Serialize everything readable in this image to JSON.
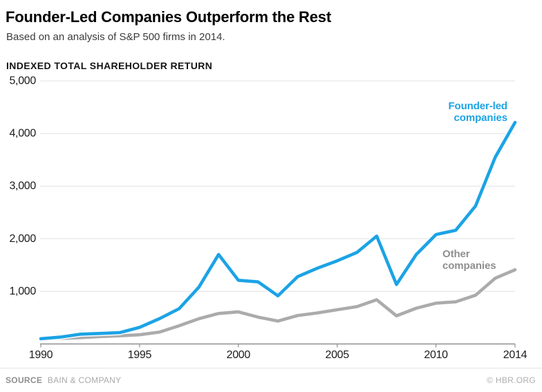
{
  "header": {
    "title": "Founder-Led Companies Outperform the Rest",
    "subtitle": "Based on an analysis of S&P 500 firms in 2014."
  },
  "chart_data": {
    "type": "line",
    "title": "Founder-Led Companies Outperform the Rest",
    "subtitle": "Based on an analysis of S&P 500 firms in 2014.",
    "ylabel": "INDEXED TOTAL SHAREHOLDER RETURN",
    "xlabel": "",
    "ylim": [
      0,
      5000
    ],
    "grid": "horizontal",
    "legend_position": "inline-labels",
    "yticks": [
      1000,
      2000,
      3000,
      4000,
      5000
    ],
    "ytick_labels": [
      "1,000",
      "2,000",
      "3,000",
      "4,000",
      "5,000"
    ],
    "xticks": [
      1990,
      1995,
      2000,
      2005,
      2010,
      2014
    ],
    "xtick_labels": [
      "1990",
      "1995",
      "2000",
      "2005",
      "2010",
      "2014"
    ],
    "x": [
      1990,
      1991,
      1992,
      1993,
      1994,
      1995,
      1996,
      1997,
      1998,
      1999,
      2000,
      2001,
      2002,
      2003,
      2004,
      2005,
      2006,
      2007,
      2008,
      2009,
      2010,
      2011,
      2012,
      2013,
      2014
    ],
    "series": [
      {
        "name": "Other companies",
        "label_lines": [
          "Other",
          "companies"
        ],
        "color": "#ababab",
        "label_color": "#8f8f8f",
        "values": [
          95,
          105,
          120,
          140,
          155,
          175,
          225,
          345,
          480,
          580,
          610,
          510,
          435,
          540,
          590,
          650,
          710,
          840,
          535,
          680,
          775,
          800,
          925,
          1250,
          1410
        ]
      },
      {
        "name": "Founder-led companies",
        "label_lines": [
          "Founder-led",
          "companies"
        ],
        "color": "#1ca3e5",
        "label_color": "#1ca3e5",
        "values": [
          100,
          130,
          185,
          200,
          215,
          315,
          480,
          670,
          1080,
          1700,
          1210,
          1180,
          915,
          1280,
          1440,
          1580,
          1740,
          2050,
          1130,
          1700,
          2080,
          2160,
          2620,
          3550,
          4210
        ]
      }
    ],
    "style": {
      "gridline_color": "#e0e0e0",
      "axis_color": "#8f8f8f",
      "line_width": 4.6,
      "casing_color": "#ffffff"
    }
  },
  "footer": {
    "source_label": "SOURCE",
    "source_value": "BAIN & COMPANY",
    "credit": "© HBR.ORG"
  }
}
